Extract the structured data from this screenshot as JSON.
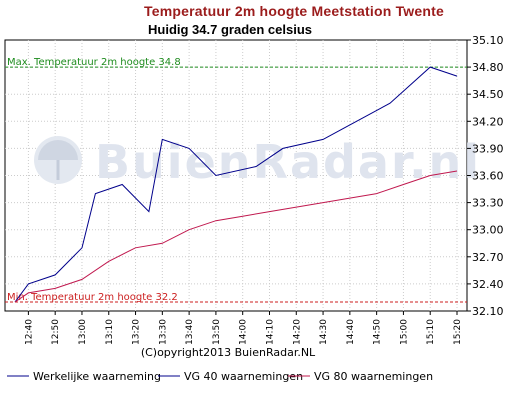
{
  "chart_data": {
    "type": "line",
    "title": "Temperatuur 2m hoogte Meetstation Twente",
    "subtitle": "Huidig 34.7 graden celsius",
    "categories": [
      "12:40",
      "12:50",
      "13:00",
      "13:10",
      "13:20",
      "13:30",
      "13:40",
      "13:50",
      "14:00",
      "14:10",
      "14:20",
      "14:30",
      "14:40",
      "14:50",
      "15:00",
      "15:10",
      "15:20"
    ],
    "x": [
      "12:35",
      "12:40",
      "12:45",
      "12:50",
      "12:55",
      "13:00",
      "13:05",
      "13:10",
      "13:15",
      "13:20",
      "13:25",
      "13:30",
      "13:35",
      "13:40",
      "13:45",
      "13:50",
      "13:55",
      "14:00",
      "14:05",
      "14:10",
      "14:15",
      "14:20",
      "14:25",
      "14:30",
      "14:35",
      "14:40",
      "14:45",
      "14:50",
      "14:55",
      "15:00",
      "15:05",
      "15:10",
      "15:15",
      "15:20"
    ],
    "ylim": [
      32.1,
      35.1
    ],
    "yticks": [
      "32.10",
      "32.40",
      "32.70",
      "33.00",
      "33.30",
      "33.60",
      "33.90",
      "34.20",
      "34.50",
      "34.80",
      "35.10"
    ],
    "grid": true,
    "legend_position": "bottom",
    "series": [
      {
        "name": "Werkelijke waarneming",
        "color": "#00008b",
        "points": [
          [
            "12:35",
            32.2
          ],
          [
            "12:40",
            32.4
          ],
          [
            "12:50",
            32.5
          ],
          [
            "13:00",
            32.8
          ],
          [
            "13:05",
            33.4
          ],
          [
            "13:15",
            33.5
          ],
          [
            "13:25",
            33.2
          ],
          [
            "13:30",
            34.0
          ],
          [
            "13:40",
            33.9
          ],
          [
            "13:50",
            33.6
          ],
          [
            "14:05",
            33.7
          ],
          [
            "14:15",
            33.9
          ],
          [
            "14:30",
            34.0
          ],
          [
            "14:55",
            34.4
          ],
          [
            "15:10",
            34.8
          ],
          [
            "15:20",
            34.7
          ]
        ]
      },
      {
        "name": "VG 40 waarnemingen",
        "color": "#00008b",
        "points": []
      },
      {
        "name": "VG 80 waarnemingen",
        "color": "#c0184e",
        "points": [
          [
            "12:35",
            32.2
          ],
          [
            "12:40",
            32.3
          ],
          [
            "12:50",
            32.35
          ],
          [
            "13:00",
            32.45
          ],
          [
            "13:10",
            32.65
          ],
          [
            "13:20",
            32.8
          ],
          [
            "13:30",
            32.85
          ],
          [
            "13:40",
            33.0
          ],
          [
            "13:50",
            33.1
          ],
          [
            "14:00",
            33.15
          ],
          [
            "14:10",
            33.2
          ],
          [
            "14:20",
            33.25
          ],
          [
            "14:30",
            33.3
          ],
          [
            "14:40",
            33.35
          ],
          [
            "14:50",
            33.4
          ],
          [
            "15:00",
            33.5
          ],
          [
            "15:10",
            33.6
          ],
          [
            "15:20",
            33.65
          ]
        ]
      }
    ],
    "reference_lines": [
      {
        "label": "Max. Temperatuur 2m hoogte 34.8",
        "value": 34.8,
        "color": "#1e8c1e"
      },
      {
        "label": "Min. Temperatuur 2m hoogte 32.2",
        "value": 32.2,
        "color": "#cc1f1f"
      }
    ],
    "watermark": "BuienRadar.nl",
    "copyright": "(C)opyright2013 BuienRadar.NL"
  }
}
